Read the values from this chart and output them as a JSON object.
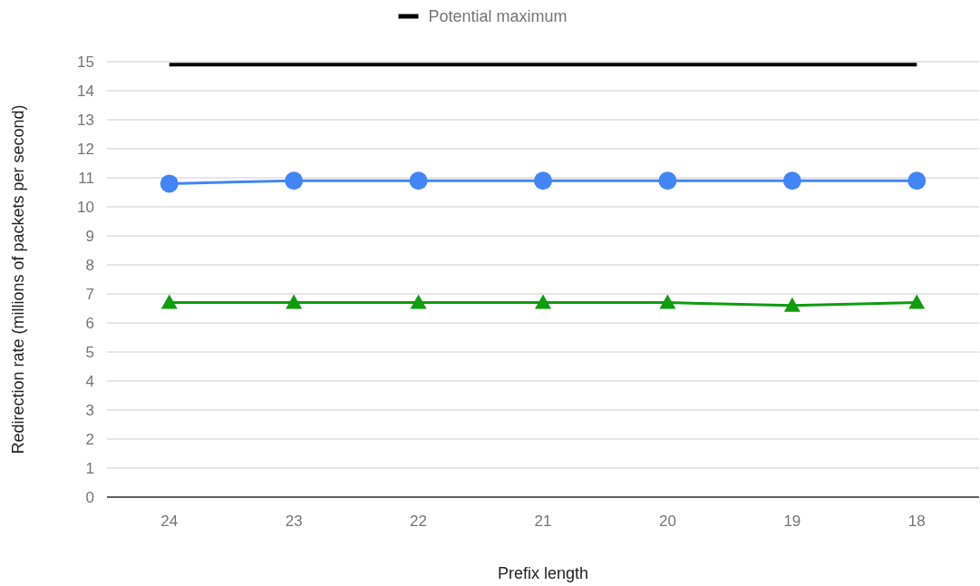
{
  "chart_data": {
    "type": "line",
    "xlabel": "Prefix length",
    "ylabel": "Redirection rate (millions of packets per second)",
    "categories": [
      "24",
      "23",
      "22",
      "21",
      "20",
      "19",
      "18"
    ],
    "series": [
      {
        "color": "#4285f4",
        "marker": "circle",
        "values": [
          10.8,
          10.9,
          10.9,
          10.9,
          10.9,
          10.9,
          10.9
        ]
      },
      {
        "color": "#0f9d0f",
        "marker": "triangle",
        "values": [
          6.7,
          6.7,
          6.7,
          6.7,
          6.7,
          6.6,
          6.7
        ]
      },
      {
        "name": "Potential maximum",
        "color": "#000000",
        "marker": "none",
        "values": [
          14.9,
          14.9,
          14.9,
          14.9,
          14.9,
          14.9,
          14.9
        ]
      }
    ],
    "ylim": [
      0,
      15
    ],
    "yticks": [
      0,
      1,
      2,
      3,
      4,
      5,
      6,
      7,
      8,
      9,
      10,
      11,
      12,
      13,
      14,
      15
    ],
    "grid": "y",
    "legend": "top"
  }
}
